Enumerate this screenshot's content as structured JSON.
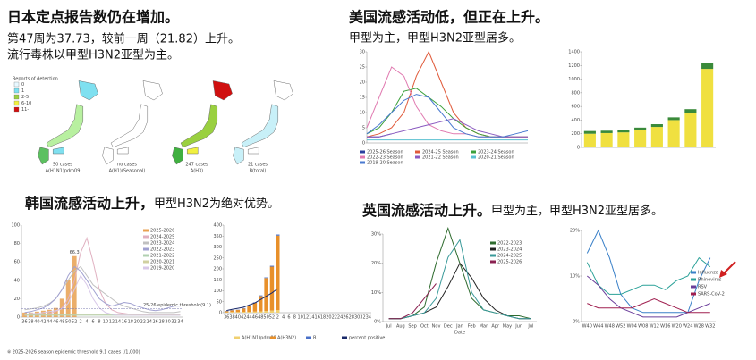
{
  "japan": {
    "title": "日本定点报告数仍在增加。",
    "lines": [
      "第47周为37.73，较前一周（21.82）上升。",
      "流行毒株以甲型H3N2亚型为主。"
    ],
    "legend_title": "Reports of detection",
    "legend": [
      "0",
      "1",
      "2-5",
      "6-10",
      "11-"
    ],
    "maps": [
      {
        "cases": "50 cases",
        "strain": "A(H1N1)pdm09"
      },
      {
        "cases": "no cases",
        "strain": "A(H1)(Seasonal)"
      },
      {
        "cases": "247 cases",
        "strain": "A(H3)"
      },
      {
        "cases": "21 cases",
        "strain": "B(total)"
      }
    ]
  },
  "us": {
    "title": "美国流感活动低，但正在上升。",
    "subtitle": "甲型为主，甲型H3N2亚型居多。"
  },
  "korea": {
    "title": "韩国流感活动上升，",
    "subtitle": "甲型H3N2为绝对优势。",
    "note": "※ 2025-2026 season epidemic threshold 9.1 cases (/1,000)"
  },
  "uk": {
    "title": "英国流感活动上升。",
    "subtitle": "甲型为主，甲型H3N2亚型居多。"
  },
  "chart_data": [
    {
      "type": "line",
      "x": [
        0,
        4,
        8,
        12,
        16,
        20,
        24,
        28,
        32,
        36,
        40,
        44,
        48,
        52
      ],
      "xlim": [
        0,
        52
      ],
      "ylim": [
        0,
        30
      ],
      "yticks": [
        0,
        5,
        10,
        15,
        20,
        25,
        30
      ],
      "series": [
        {
          "name": "2025-26 Season",
          "color": "#2a3f9f",
          "values": [
            2,
            2,
            3,
            null,
            null,
            null,
            null,
            null,
            null,
            null,
            null,
            null,
            null,
            null
          ]
        },
        {
          "name": "2024-25 Season",
          "color": "#e05a3a",
          "values": [
            2,
            3,
            5,
            10,
            22,
            30,
            20,
            10,
            5,
            3,
            2,
            2,
            2,
            2
          ]
        },
        {
          "name": "2023-24 Season",
          "color": "#3aa03a",
          "values": [
            3,
            5,
            10,
            17,
            18,
            15,
            12,
            8,
            5,
            3,
            2,
            2,
            2,
            2
          ]
        },
        {
          "name": "2022-23 Season",
          "color": "#e07ab0",
          "values": [
            5,
            15,
            25,
            22,
            12,
            6,
            4,
            3,
            3,
            2,
            2,
            2,
            2,
            2
          ]
        },
        {
          "name": "2021-22 Season",
          "color": "#8a5ac0",
          "values": [
            2,
            2,
            3,
            4,
            5,
            6,
            7,
            8,
            6,
            4,
            3,
            2,
            2,
            2
          ]
        },
        {
          "name": "2020-21 Season",
          "color": "#5ac0d0",
          "values": [
            1,
            1,
            1,
            1,
            1,
            1,
            1,
            1,
            1,
            1,
            1,
            1,
            1,
            1
          ]
        },
        {
          "name": "2019-20 Season",
          "color": "#4a7ad0",
          "values": [
            3,
            6,
            10,
            14,
            16,
            15,
            10,
            5,
            3,
            2,
            2,
            2,
            3,
            4
          ]
        }
      ]
    },
    {
      "type": "bar",
      "categories": [
        null,
        null,
        null,
        null,
        null,
        null,
        null,
        null
      ],
      "ylim": [
        0,
        1400
      ],
      "yticks": [
        0,
        200,
        400,
        600,
        800,
        1000,
        1200,
        1400
      ],
      "series": [
        {
          "color": "#f0e040",
          "values": [
            200,
            210,
            220,
            260,
            300,
            400,
            500,
            1150
          ]
        },
        {
          "color": "#3a8a3a",
          "values": [
            40,
            35,
            30,
            30,
            40,
            40,
            60,
            80
          ]
        }
      ]
    },
    {
      "type": "line",
      "categories": [
        "36",
        "38",
        "40",
        "42",
        "44",
        "46",
        "48",
        "50",
        "52",
        "2",
        "4",
        "6",
        "8",
        "10",
        "12",
        "14",
        "16",
        "18",
        "20",
        "22",
        "24",
        "26",
        "28",
        "30",
        "32",
        "34"
      ],
      "ylim": [
        0,
        100
      ],
      "yticks": [
        0,
        20,
        40,
        60,
        80,
        100
      ],
      "threshold": {
        "label": "25-26 epidemic threshold(9.1)",
        "value": 9.1
      },
      "series": [
        {
          "name": "2025-2026",
          "color": "#e8a050",
          "style": "bar",
          "values": [
            5,
            5,
            6,
            7,
            8,
            10,
            20,
            40,
            66.3,
            null,
            null,
            null,
            null,
            null,
            null,
            null,
            null,
            null,
            null,
            null,
            null,
            null,
            null,
            null,
            null,
            null
          ]
        },
        {
          "name": "2024-2025",
          "color": "#e0b0c0",
          "values": [
            2,
            2,
            3,
            3,
            4,
            6,
            10,
            20,
            40,
            70,
            86,
            60,
            30,
            15,
            8,
            5,
            4,
            3,
            3,
            3,
            3,
            3,
            3,
            3,
            3,
            3
          ]
        },
        {
          "name": "2023-2024",
          "color": "#c0c0c0",
          "values": [
            8,
            9,
            10,
            12,
            15,
            20,
            30,
            40,
            50,
            55,
            45,
            35,
            30,
            25,
            20,
            15,
            12,
            10,
            8,
            6,
            5,
            5,
            5,
            5,
            5,
            6
          ]
        },
        {
          "name": "2022-2023",
          "color": "#a0a0d0",
          "values": [
            5,
            6,
            8,
            10,
            14,
            20,
            30,
            45,
            55,
            50,
            40,
            30,
            20,
            15,
            12,
            14,
            16,
            15,
            12,
            10,
            8,
            7,
            8,
            10,
            12,
            12
          ]
        },
        {
          "name": "2021-2022",
          "color": "#b0d0b0",
          "values": [
            2,
            2,
            2,
            2,
            2,
            2,
            2,
            2,
            2,
            2,
            2,
            2,
            2,
            2,
            2,
            2,
            2,
            2,
            2,
            2,
            2,
            2,
            2,
            2,
            2,
            2
          ]
        },
        {
          "name": "2020-2021",
          "color": "#d0d0a0",
          "values": [
            3,
            3,
            3,
            3,
            3,
            3,
            3,
            3,
            3,
            3,
            3,
            3,
            3,
            3,
            3,
            3,
            3,
            3,
            3,
            3,
            3,
            3,
            3,
            3,
            3,
            3
          ]
        },
        {
          "name": "2019-2020",
          "color": "#d8c8e8",
          "values": [
            3,
            4,
            4,
            5,
            6,
            7,
            9,
            15,
            30,
            45,
            35,
            20,
            10,
            5,
            3,
            2,
            2,
            2,
            2,
            2,
            2,
            2,
            2,
            2,
            2,
            2
          ]
        }
      ]
    },
    {
      "type": "bar",
      "categories": [
        "36",
        "38",
        "40",
        "42",
        "44",
        "46",
        "48",
        "50",
        "52",
        "2",
        "4",
        "6",
        "8",
        "10",
        "12",
        "14",
        "16",
        "18",
        "20",
        "22",
        "24",
        "26",
        "28",
        "30",
        "32",
        "34"
      ],
      "ylim": [
        0,
        400
      ],
      "yticks": [
        0,
        50,
        100,
        150,
        200,
        250,
        300,
        350,
        400
      ],
      "series": [
        {
          "name": "A(H1N1)pdm09",
          "color": "#f0d070",
          "values": [
            2,
            3,
            3,
            4,
            4,
            5,
            6,
            8,
            10,
            12,
            null,
            null,
            null,
            null,
            null,
            null,
            null,
            null,
            null,
            null,
            null,
            null,
            null,
            null,
            null,
            null
          ]
        },
        {
          "name": "A(H3N2)",
          "color": "#e8902a",
          "values": [
            5,
            8,
            10,
            15,
            25,
            40,
            70,
            150,
            200,
            340,
            null,
            null,
            null,
            null,
            null,
            null,
            null,
            null,
            null,
            null,
            null,
            null,
            null,
            null,
            null,
            null
          ]
        },
        {
          "name": "B",
          "color": "#4a70c8",
          "values": [
            1,
            1,
            1,
            2,
            2,
            2,
            3,
            3,
            4,
            5,
            null,
            null,
            null,
            null,
            null,
            null,
            null,
            null,
            null,
            null,
            null,
            null,
            null,
            null,
            null,
            null
          ]
        },
        {
          "name": "percent positive",
          "color": "#1a2a6a",
          "style": "line",
          "values": [
            10,
            15,
            20,
            25,
            35,
            45,
            60,
            75,
            90,
            110,
            null,
            null,
            null,
            null,
            null,
            null,
            null,
            null,
            null,
            null,
            null,
            null,
            null,
            null,
            null,
            null
          ]
        }
      ]
    },
    {
      "type": "line",
      "categories": [
        "Jul",
        "Aug",
        "Sep",
        "Oct",
        "Nov",
        "Dec",
        "Jan",
        "Feb",
        "Mar",
        "Apr",
        "May",
        "Jun",
        "Jul"
      ],
      "xlabel": "Date",
      "ylim": [
        0,
        30
      ],
      "yticks": [
        {
          "value": 0,
          "label": "0%"
        },
        {
          "value": 10,
          "label": "10%"
        },
        {
          "value": 20,
          "label": "20%"
        },
        {
          "value": 30,
          "label": "30%"
        }
      ],
      "series": [
        {
          "name": "2022-2023",
          "color": "#2e6b2e",
          "values": [
            1,
            1,
            2,
            5,
            20,
            32,
            20,
            8,
            4,
            3,
            2,
            2,
            1
          ]
        },
        {
          "name": "2023-2024",
          "color": "#222222",
          "values": [
            1,
            1,
            2,
            3,
            5,
            12,
            20,
            15,
            8,
            4,
            2,
            1,
            1
          ]
        },
        {
          "name": "2024-2025",
          "color": "#3a9a9a",
          "values": [
            1,
            1,
            2,
            3,
            8,
            22,
            28,
            10,
            4,
            3,
            2,
            1,
            1
          ]
        },
        {
          "name": "2025-2026",
          "color": "#8a2050",
          "values": [
            1,
            1,
            3,
            8,
            13,
            null,
            null,
            null,
            null,
            null,
            null,
            null,
            null
          ]
        }
      ]
    },
    {
      "type": "line",
      "categories": [
        "W40",
        "W44",
        "W48",
        "W52",
        "W04",
        "W08",
        "W12",
        "W16",
        "W20",
        "W24",
        "W28",
        "W32"
      ],
      "ylim": [
        0,
        20
      ],
      "yticks": [
        {
          "value": 0,
          "label": "0%"
        },
        {
          "value": 10,
          "label": "10%"
        },
        {
          "value": 20,
          "label": "20%"
        }
      ],
      "series": [
        {
          "name": "Influenza",
          "color": "#3a80c8",
          "values": [
            15,
            20,
            14,
            6,
            3,
            2,
            2,
            2,
            2,
            2,
            9,
            14
          ]
        },
        {
          "name": "Rhinovirus",
          "color": "#2aa198",
          "values": [
            13,
            8,
            6,
            6,
            7,
            8,
            8,
            7,
            9,
            10,
            14,
            12
          ]
        },
        {
          "name": "RSV",
          "color": "#6a3d9a",
          "values": [
            10,
            8,
            5,
            3,
            2,
            1,
            1,
            1,
            1,
            2,
            3,
            4
          ]
        },
        {
          "name": "SARS-CoV-2",
          "color": "#a02050",
          "values": [
            4,
            3,
            3,
            3,
            3,
            4,
            5,
            4,
            3,
            2,
            2,
            2
          ]
        }
      ]
    }
  ]
}
